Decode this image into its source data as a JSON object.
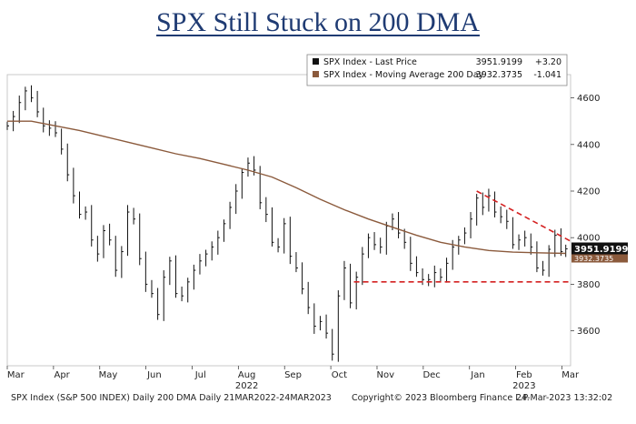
{
  "chart_data": {
    "type": "line",
    "title": "SPX Still Stuck on 200 DMA",
    "xlabel": "",
    "ylabel": "",
    "ylim": [
      3450,
      4700
    ],
    "y_ticks": [
      "3600",
      "3800",
      "4000",
      "4200",
      "4400",
      "4600"
    ],
    "x_month_labels": [
      "Mar",
      "Apr",
      "May",
      "Jun",
      "Jul",
      "Aug",
      "Sep",
      "Oct",
      "Nov",
      "Dec",
      "Jan",
      "Feb",
      "Mar"
    ],
    "x_year_labels": [
      {
        "label": "2022",
        "month": "Aug"
      },
      {
        "label": "2023",
        "month": "Feb"
      }
    ],
    "legend": {
      "placement": "top-right",
      "entries": [
        {
          "name": "SPX Index - Last Price",
          "value": "3951.9199",
          "change": "+3.20",
          "color": "#111111"
        },
        {
          "name": "SPX Index - Moving Average 200 Day",
          "value": "3932.3735",
          "change": "-1.041",
          "color": "#8b5a3c"
        }
      ]
    },
    "last_price_label": "3951.9199",
    "ma_label": "3932.3735",
    "series": [
      {
        "name": "SPX Index - Last Price",
        "style": "bar-ohlc",
        "color": "#111111",
        "points": [
          [
            0.0,
            4480
          ],
          [
            0.25,
            4520
          ],
          [
            0.5,
            4580
          ],
          [
            0.75,
            4630
          ],
          [
            1.0,
            4600
          ],
          [
            1.25,
            4540
          ],
          [
            1.5,
            4480
          ],
          [
            1.75,
            4470
          ],
          [
            2.0,
            4450
          ],
          [
            2.25,
            4380
          ],
          [
            2.5,
            4270
          ],
          [
            2.75,
            4180
          ],
          [
            3.0,
            4100
          ],
          [
            3.25,
            4110
          ],
          [
            3.5,
            3990
          ],
          [
            3.75,
            3930
          ],
          [
            4.0,
            4030
          ],
          [
            4.25,
            3990
          ],
          [
            4.5,
            3860
          ],
          [
            4.75,
            3940
          ],
          [
            5.0,
            4110
          ],
          [
            5.25,
            4080
          ],
          [
            5.5,
            3910
          ],
          [
            5.75,
            3800
          ],
          [
            6.0,
            3760
          ],
          [
            6.25,
            3670
          ],
          [
            6.5,
            3830
          ],
          [
            6.75,
            3900
          ],
          [
            7.0,
            3760
          ],
          [
            7.25,
            3750
          ],
          [
            7.5,
            3810
          ],
          [
            7.75,
            3860
          ],
          [
            8.0,
            3900
          ],
          [
            8.25,
            3930
          ],
          [
            8.5,
            3960
          ],
          [
            8.75,
            4000
          ],
          [
            9.0,
            4060
          ],
          [
            9.25,
            4130
          ],
          [
            9.5,
            4200
          ],
          [
            9.75,
            4280
          ],
          [
            10.0,
            4320
          ],
          [
            10.25,
            4290
          ],
          [
            10.5,
            4150
          ],
          [
            10.75,
            4100
          ],
          [
            11.0,
            3980
          ],
          [
            11.25,
            3960
          ],
          [
            11.5,
            4060
          ],
          [
            11.75,
            3920
          ],
          [
            12.0,
            3870
          ],
          [
            12.25,
            3780
          ],
          [
            12.5,
            3700
          ],
          [
            12.75,
            3620
          ],
          [
            13.0,
            3640
          ],
          [
            13.25,
            3590
          ],
          [
            13.5,
            3500
          ],
          [
            13.75,
            3750
          ],
          [
            14.0,
            3870
          ],
          [
            14.25,
            3720
          ],
          [
            14.5,
            3830
          ],
          [
            14.75,
            3930
          ],
          [
            15.0,
            4000
          ],
          [
            15.25,
            3970
          ],
          [
            15.5,
            3960
          ],
          [
            15.75,
            4050
          ],
          [
            16.0,
            4080
          ],
          [
            16.25,
            4020
          ],
          [
            16.5,
            3980
          ],
          [
            16.75,
            3890
          ],
          [
            17.0,
            3850
          ],
          [
            17.25,
            3820
          ],
          [
            17.5,
            3820
          ],
          [
            17.75,
            3850
          ],
          [
            18.0,
            3830
          ],
          [
            18.25,
            3890
          ],
          [
            18.5,
            3960
          ],
          [
            18.75,
            3990
          ],
          [
            19.0,
            4020
          ],
          [
            19.25,
            4080
          ],
          [
            19.5,
            4170
          ],
          [
            19.75,
            4130
          ],
          [
            20.0,
            4180
          ],
          [
            20.25,
            4110
          ],
          [
            20.5,
            4090
          ],
          [
            20.75,
            4070
          ],
          [
            21.0,
            3970
          ],
          [
            21.25,
            3990
          ],
          [
            21.5,
            4000
          ],
          [
            21.75,
            3960
          ],
          [
            22.0,
            3870
          ],
          [
            22.25,
            3860
          ],
          [
            22.5,
            3950
          ],
          [
            22.75,
            4010
          ],
          [
            23.0,
            3940
          ],
          [
            23.2,
            3951.92
          ]
        ]
      },
      {
        "name": "SPX Index - Moving Average 200 Day",
        "style": "line",
        "color": "#8b5a3c",
        "points": [
          [
            0.0,
            4500
          ],
          [
            1.0,
            4500
          ],
          [
            2.0,
            4480
          ],
          [
            3.0,
            4460
          ],
          [
            4.0,
            4435
          ],
          [
            5.0,
            4410
          ],
          [
            6.0,
            4385
          ],
          [
            7.0,
            4360
          ],
          [
            8.0,
            4340
          ],
          [
            9.0,
            4315
          ],
          [
            10.0,
            4290
          ],
          [
            11.0,
            4260
          ],
          [
            12.0,
            4215
          ],
          [
            13.0,
            4165
          ],
          [
            14.0,
            4120
          ],
          [
            15.0,
            4080
          ],
          [
            16.0,
            4045
          ],
          [
            17.0,
            4010
          ],
          [
            18.0,
            3980
          ],
          [
            19.0,
            3960
          ],
          [
            20.0,
            3945
          ],
          [
            21.0,
            3938
          ],
          [
            22.0,
            3935
          ],
          [
            23.2,
            3932.37
          ]
        ]
      }
    ]
  }
}
